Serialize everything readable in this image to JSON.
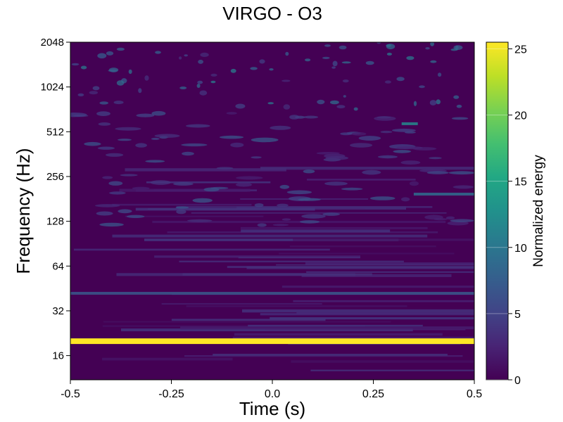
{
  "chart_data": {
    "type": "heatmap",
    "title": "VIRGO - O3",
    "xlabel": "Time (s)",
    "ylabel": "Frequency (Hz)",
    "xlim": [
      -0.5,
      0.5
    ],
    "ylim": [
      11,
      2048
    ],
    "yscale": "log2",
    "xticks": [
      -0.5,
      -0.25,
      0.0,
      0.25,
      0.5
    ],
    "xtick_labels": [
      "-0.5",
      "-0.25",
      "0.0",
      "0.25",
      "0.5"
    ],
    "yticks": [
      16,
      32,
      64,
      128,
      256,
      512,
      1024,
      2048
    ],
    "ytick_labels": [
      "16",
      "32",
      "64",
      "128",
      "256",
      "512",
      "1024",
      "2048"
    ],
    "colormap": "viridis",
    "colorbar": {
      "label": "Normalized energy",
      "range": [
        0,
        25.5
      ],
      "ticks": [
        0,
        5,
        10,
        15,
        20,
        25
      ],
      "tick_labels": [
        "0",
        "5",
        "10",
        "15",
        "20",
        "25"
      ]
    },
    "features": [
      {
        "freq_hz": 20,
        "x_range": [
          -0.5,
          0.5
        ],
        "energy": 25.5
      },
      {
        "freq_hz": 42,
        "x_range": [
          -0.5,
          0.5
        ],
        "energy": 7
      },
      {
        "freq_hz": 195,
        "x_range": [
          0.35,
          0.5
        ],
        "energy": 9
      },
      {
        "freq_hz": 580,
        "x_range": [
          0.32,
          0.36
        ],
        "energy": 12
      }
    ]
  }
}
